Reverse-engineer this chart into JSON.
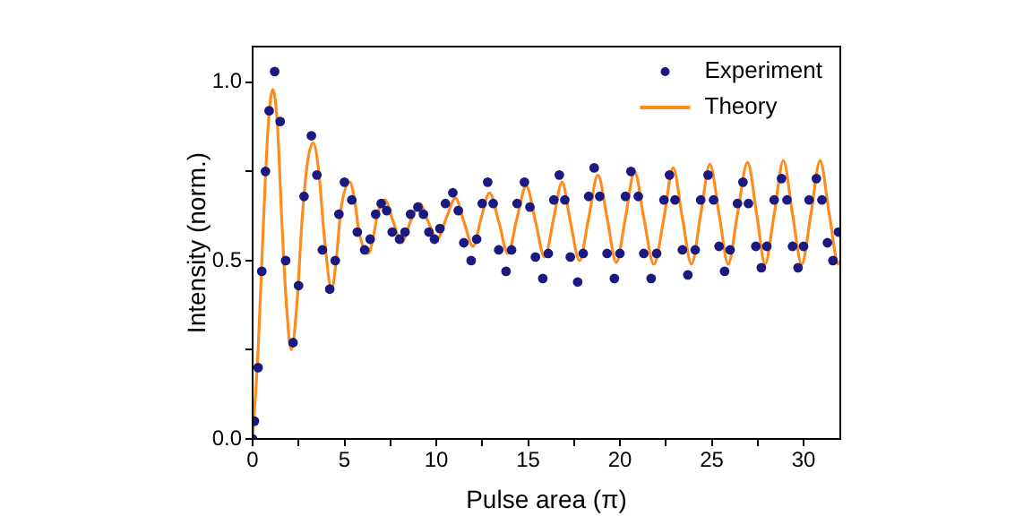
{
  "chart_data": {
    "type": "scatter",
    "xlabel": "Pulse area (π)",
    "ylabel": "Intensity (norm.)",
    "xlim": [
      0,
      32
    ],
    "ylim": [
      0,
      1.1
    ],
    "xticks": [
      0,
      {
        "value": 2.5,
        "label": null
      },
      5,
      {
        "value": 7.5,
        "label": null
      },
      10,
      {
        "value": 12.5,
        "label": null
      },
      15,
      {
        "value": 17.5,
        "label": null
      },
      20,
      {
        "value": 22.5,
        "label": null
      },
      25,
      {
        "value": 27.5,
        "label": null
      },
      30
    ],
    "yticks": [
      {
        "value": 0,
        "label": "0.0"
      },
      {
        "value": 0.25,
        "label": null
      },
      {
        "value": 0.5,
        "label": "0.5"
      },
      {
        "value": 0.75,
        "label": null
      },
      {
        "value": 1,
        "label": "1.0"
      }
    ],
    "grid": false,
    "legend": "top right",
    "series": [
      {
        "name": "Experiment",
        "type": "scatter",
        "color": "#1a1a80",
        "marker": "circle",
        "x": [
          0,
          0.1,
          0.3,
          0.5,
          0.7,
          0.9,
          1.2,
          1.5,
          1.8,
          2.2,
          2.5,
          2.8,
          3.2,
          3.5,
          3.8,
          4.2,
          4.5,
          4.7,
          5.0,
          5.4,
          5.7,
          6.1,
          6.4,
          6.7,
          7.0,
          7.3,
          7.6,
          8.0,
          8.3,
          8.6,
          9.0,
          9.3,
          9.6,
          9.9,
          10.2,
          10.5,
          10.9,
          11.2,
          11.5,
          11.9,
          12.2,
          12.5,
          12.8,
          13.1,
          13.4,
          13.8,
          14.1,
          14.4,
          14.8,
          15.1,
          15.4,
          15.8,
          16.1,
          16.4,
          16.7,
          17.0,
          17.3,
          17.7,
          18.0,
          18.3,
          18.6,
          18.9,
          19.3,
          19.7,
          20.0,
          20.3,
          20.6,
          21.0,
          21.3,
          21.7,
          22.0,
          22.4,
          22.7,
          23.0,
          23.4,
          23.7,
          24.1,
          24.4,
          24.8,
          25.1,
          25.4,
          25.7,
          26.0,
          26.4,
          26.7,
          27.0,
          27.4,
          27.7,
          28.0,
          28.4,
          28.8,
          29.1,
          29.4,
          29.7,
          30.0,
          30.3,
          30.7,
          31.0,
          31.3,
          31.6,
          31.9
        ],
        "values": [
          0.0,
          0.05,
          0.2,
          0.47,
          0.75,
          0.92,
          1.03,
          0.89,
          0.5,
          0.27,
          0.43,
          0.68,
          0.85,
          0.74,
          0.53,
          0.42,
          0.5,
          0.63,
          0.72,
          0.67,
          0.58,
          0.53,
          0.56,
          0.63,
          0.66,
          0.64,
          0.58,
          0.56,
          0.58,
          0.63,
          0.65,
          0.63,
          0.58,
          0.56,
          0.59,
          0.66,
          0.69,
          0.64,
          0.55,
          0.5,
          0.56,
          0.66,
          0.72,
          0.66,
          0.53,
          0.47,
          0.53,
          0.66,
          0.72,
          0.65,
          0.51,
          0.45,
          0.52,
          0.67,
          0.74,
          0.67,
          0.51,
          0.44,
          0.52,
          0.68,
          0.76,
          0.68,
          0.52,
          0.45,
          0.52,
          0.68,
          0.75,
          0.68,
          0.52,
          0.45,
          0.52,
          0.67,
          0.74,
          0.67,
          0.53,
          0.46,
          0.53,
          0.67,
          0.74,
          0.67,
          0.54,
          0.47,
          0.53,
          0.66,
          0.72,
          0.66,
          0.54,
          0.48,
          0.54,
          0.67,
          0.73,
          0.67,
          0.54,
          0.48,
          0.54,
          0.67,
          0.73,
          0.67,
          0.55,
          0.5,
          0.58
        ]
      },
      {
        "name": "Theory",
        "type": "line",
        "color": "#ff8c1a",
        "marker": "none",
        "line_style": "solid",
        "x": [
          0,
          0.3,
          0.6,
          0.85,
          1.1,
          1.35,
          1.6,
          1.85,
          2.1,
          2.4,
          2.7,
          3.0,
          3.3,
          3.6,
          3.9,
          4.3,
          4.55,
          4.8,
          5.3,
          5.55,
          5.8,
          6.3,
          6.55,
          6.8,
          7.2,
          7.65,
          8.1,
          8.6,
          9.1,
          9.55,
          10.05,
          10.55,
          11.05,
          11.5,
          12.0,
          12.45,
          12.9,
          13.4,
          13.9,
          14.4,
          14.9,
          15.4,
          15.9,
          16.4,
          16.85,
          17.3,
          17.8,
          18.3,
          18.8,
          19.3,
          19.8,
          20.3,
          20.8,
          21.3,
          21.85,
          22.4,
          22.9,
          23.4,
          23.9,
          24.4,
          24.9,
          25.4,
          25.9,
          26.4,
          26.95,
          27.45,
          27.9,
          28.4,
          28.9,
          29.4,
          29.9,
          30.4,
          30.9,
          31.4,
          31.9,
          32
        ],
        "values": [
          0,
          0.25,
          0.62,
          0.88,
          0.98,
          0.88,
          0.6,
          0.37,
          0.25,
          0.37,
          0.62,
          0.78,
          0.83,
          0.75,
          0.57,
          0.42,
          0.5,
          0.64,
          0.72,
          0.67,
          0.58,
          0.52,
          0.56,
          0.63,
          0.67,
          0.61,
          0.55,
          0.61,
          0.66,
          0.61,
          0.56,
          0.62,
          0.675,
          0.61,
          0.54,
          0.62,
          0.69,
          0.61,
          0.52,
          0.62,
          0.71,
          0.61,
          0.51,
          0.62,
          0.72,
          0.61,
          0.5,
          0.62,
          0.74,
          0.62,
          0.495,
          0.62,
          0.75,
          0.62,
          0.49,
          0.62,
          0.76,
          0.62,
          0.49,
          0.63,
          0.77,
          0.63,
          0.49,
          0.63,
          0.775,
          0.63,
          0.49,
          0.63,
          0.78,
          0.63,
          0.49,
          0.63,
          0.78,
          0.63,
          0.49,
          0.5
        ]
      }
    ]
  }
}
